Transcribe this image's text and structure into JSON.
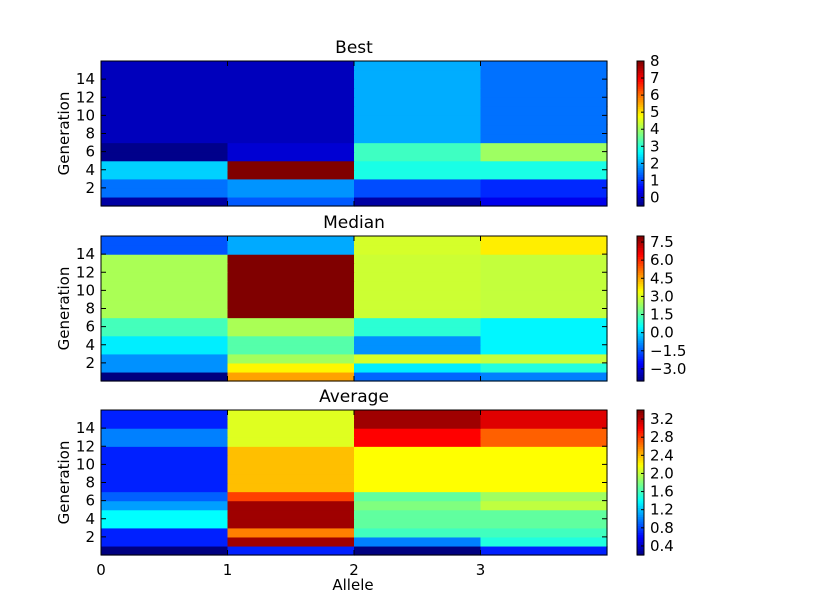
{
  "chart_data": {
    "type": "heatmap",
    "xlabel": "Allele",
    "ylabel": "Generation",
    "x_tick_labels": [
      "0",
      "1",
      "2",
      "3"
    ],
    "y_tick_labels": [
      "2",
      "4",
      "6",
      "8",
      "10",
      "12",
      "14"
    ],
    "xlim": [
      0,
      4
    ],
    "ylim": [
      0,
      16
    ],
    "colormap": "jet",
    "panels": [
      {
        "title": "Best",
        "vmin": -0.5,
        "vmax": 8,
        "colorbar_ticks": [
          "0",
          "1",
          "2",
          "3",
          "4",
          "5",
          "6",
          "7",
          "8"
        ],
        "colorbar_tick_values": [
          0,
          1,
          2,
          3,
          4,
          5,
          6,
          7,
          8
        ],
        "values": [
          [
            -0.2,
            1.3,
            -0.2,
            0.4
          ],
          [
            1.5,
            1.8,
            1.2,
            0.9
          ],
          [
            1.5,
            1.8,
            1.2,
            0.9
          ],
          [
            2.3,
            8.0,
            2.9,
            2.9
          ],
          [
            2.3,
            8.0,
            2.9,
            2.9
          ],
          [
            -0.4,
            0.2,
            3.2,
            4.0
          ],
          [
            -0.4,
            0.2,
            3.2,
            4.0
          ],
          [
            0.0,
            0.0,
            2.0,
            1.5
          ],
          [
            0.0,
            0.0,
            2.0,
            1.5
          ],
          [
            0.0,
            0.0,
            2.0,
            1.5
          ],
          [
            0.0,
            0.0,
            2.0,
            1.5
          ],
          [
            0.0,
            0.0,
            2.0,
            1.5
          ],
          [
            0.0,
            0.0,
            2.0,
            1.5
          ],
          [
            0.0,
            0.0,
            2.0,
            1.5
          ],
          [
            0.0,
            0.0,
            2.0,
            1.5
          ],
          [
            0.0,
            0.0,
            2.0,
            1.5
          ]
        ]
      },
      {
        "title": "Median",
        "vmin": -4,
        "vmax": 8,
        "colorbar_ticks": [
          "−3.0",
          "−1.5",
          "0.0",
          "1.5",
          "3.0",
          "4.5",
          "6.0",
          "7.5"
        ],
        "colorbar_tick_values": [
          -3.0,
          -1.5,
          0.0,
          1.5,
          3.0,
          4.5,
          6.0,
          7.5
        ],
        "values": [
          [
            -4.0,
            4.6,
            -1.3,
            -1.0
          ],
          [
            -0.8,
            3.6,
            0.3,
            0.9
          ],
          [
            -0.8,
            2.4,
            3.0,
            2.8
          ],
          [
            0.3,
            1.5,
            -0.8,
            0.4
          ],
          [
            0.3,
            1.5,
            -0.8,
            0.4
          ],
          [
            1.3,
            2.5,
            1.0,
            0.4
          ],
          [
            1.3,
            2.5,
            1.0,
            0.4
          ],
          [
            2.5,
            8.0,
            2.9,
            2.8
          ],
          [
            2.5,
            8.0,
            2.9,
            2.8
          ],
          [
            2.5,
            8.0,
            2.9,
            2.8
          ],
          [
            2.5,
            8.0,
            2.9,
            2.8
          ],
          [
            2.5,
            8.0,
            2.9,
            2.8
          ],
          [
            2.5,
            8.0,
            2.9,
            2.8
          ],
          [
            2.5,
            8.0,
            2.9,
            2.8
          ],
          [
            -1.5,
            -0.5,
            3.0,
            3.7
          ],
          [
            -1.5,
            -0.5,
            3.0,
            3.7
          ]
        ]
      },
      {
        "title": "Average",
        "vmin": 0.2,
        "vmax": 3.4,
        "colorbar_ticks": [
          "0.4",
          "0.8",
          "1.2",
          "1.6",
          "2.0",
          "2.4",
          "2.8",
          "3.2"
        ],
        "colorbar_tick_values": [
          0.4,
          0.8,
          1.2,
          1.6,
          2.0,
          2.4,
          2.8,
          3.2
        ],
        "values": [
          [
            0.2,
            0.7,
            0.2,
            0.7
          ],
          [
            0.7,
            3.3,
            1.0,
            1.5
          ],
          [
            0.7,
            2.6,
            1.6,
            1.6
          ],
          [
            1.4,
            3.3,
            1.7,
            1.7
          ],
          [
            1.4,
            3.3,
            1.7,
            1.7
          ],
          [
            1.1,
            3.3,
            1.8,
            2.0
          ],
          [
            0.9,
            2.8,
            1.7,
            1.9
          ],
          [
            0.7,
            2.4,
            2.2,
            2.2
          ],
          [
            0.7,
            2.4,
            2.2,
            2.2
          ],
          [
            0.7,
            2.4,
            2.2,
            2.2
          ],
          [
            0.7,
            2.4,
            2.2,
            2.2
          ],
          [
            0.7,
            2.4,
            2.2,
            2.2
          ],
          [
            1.0,
            2.1,
            3.0,
            2.7
          ],
          [
            1.0,
            2.1,
            3.0,
            2.7
          ],
          [
            0.7,
            2.1,
            3.3,
            3.1
          ],
          [
            0.7,
            2.1,
            3.3,
            3.1
          ]
        ]
      }
    ]
  }
}
